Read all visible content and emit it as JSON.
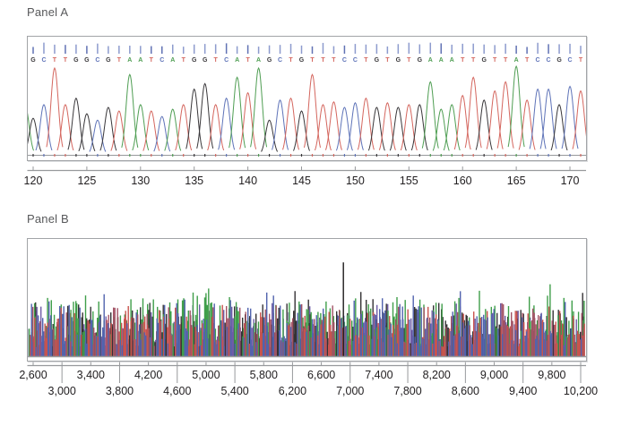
{
  "chart_data": [
    {
      "type": "line",
      "title": "Panel A",
      "chart_kind": "sanger-sequencing-chromatogram",
      "sequence": "GCTTGGCGTAATCATGGTCATAGCTGTTTCCTGTGTGAAATTGTTATCCGCT",
      "x_first_base": 120,
      "x_tick_values": [
        120,
        125,
        130,
        135,
        140,
        145,
        150,
        155,
        160,
        165,
        170
      ],
      "x_tick_labels": [
        "120",
        "125",
        "130",
        "135",
        "140",
        "145",
        "150",
        "155",
        "160",
        "165",
        "170"
      ],
      "base_colors": {
        "A": "#4f9e53",
        "C": "#5e73b8",
        "G": "#39373a",
        "T": "#d4665e"
      },
      "qv_bar_colors": [
        "#8d9bce",
        "#6172b4"
      ],
      "peak_heights": [
        0.4,
        0.55,
        0.95,
        0.55,
        0.62,
        0.45,
        0.38,
        0.52,
        0.48,
        0.88,
        0.55,
        0.48,
        0.42,
        0.5,
        0.55,
        0.72,
        0.78,
        0.55,
        0.62,
        0.85,
        0.68,
        0.95,
        0.38,
        0.6,
        0.62,
        0.48,
        0.88,
        0.55,
        0.58,
        0.52,
        0.57,
        0.62,
        0.52,
        0.57,
        0.52,
        0.55,
        0.55,
        0.8,
        0.5,
        0.55,
        0.65,
        0.85,
        0.6,
        0.7,
        0.8,
        0.97,
        0.6,
        0.72,
        0.72,
        0.55,
        0.75,
        0.7
      ],
      "ylim": [
        0,
        1
      ],
      "grid": false,
      "legend": false
    },
    {
      "type": "line",
      "title": "Panel B",
      "chart_kind": "full-length-chromatogram-overview",
      "xlim": [
        2600,
        10200
      ],
      "x_tick_step": 400,
      "x_tick_values_row1": [
        2600,
        3400,
        4200,
        5000,
        5800,
        6600,
        7400,
        8200,
        9000,
        9800
      ],
      "x_tick_labels_row1": [
        "2,600",
        "3,400",
        "4,200",
        "5,000",
        "5,800",
        "6,600",
        "7,400",
        "8,200",
        "9,000",
        "9,800"
      ],
      "x_tick_values_row2": [
        3000,
        3800,
        4600,
        5400,
        6200,
        7000,
        7800,
        8600,
        9400,
        10200
      ],
      "x_tick_labels_row2": [
        "3,000",
        "3,800",
        "4,600",
        "5,400",
        "6,200",
        "7,000",
        "7,800",
        "8,600",
        "9,400",
        "10,200"
      ],
      "trace_colors": [
        "#3f9e4a",
        "#c9534e",
        "#5163ae",
        "#343234",
        "#6f5ca6",
        "#a25264"
      ],
      "spike": {
        "x": 6900,
        "height_fraction": 0.8,
        "color": "#1c1a1b"
      },
      "noise_seed": 20,
      "grid": false,
      "legend": false
    }
  ],
  "style": {
    "frame_border": "#a2a4a7",
    "axis_line": "#97999c",
    "axis_text": "#232022",
    "title_text": "#57585a"
  }
}
